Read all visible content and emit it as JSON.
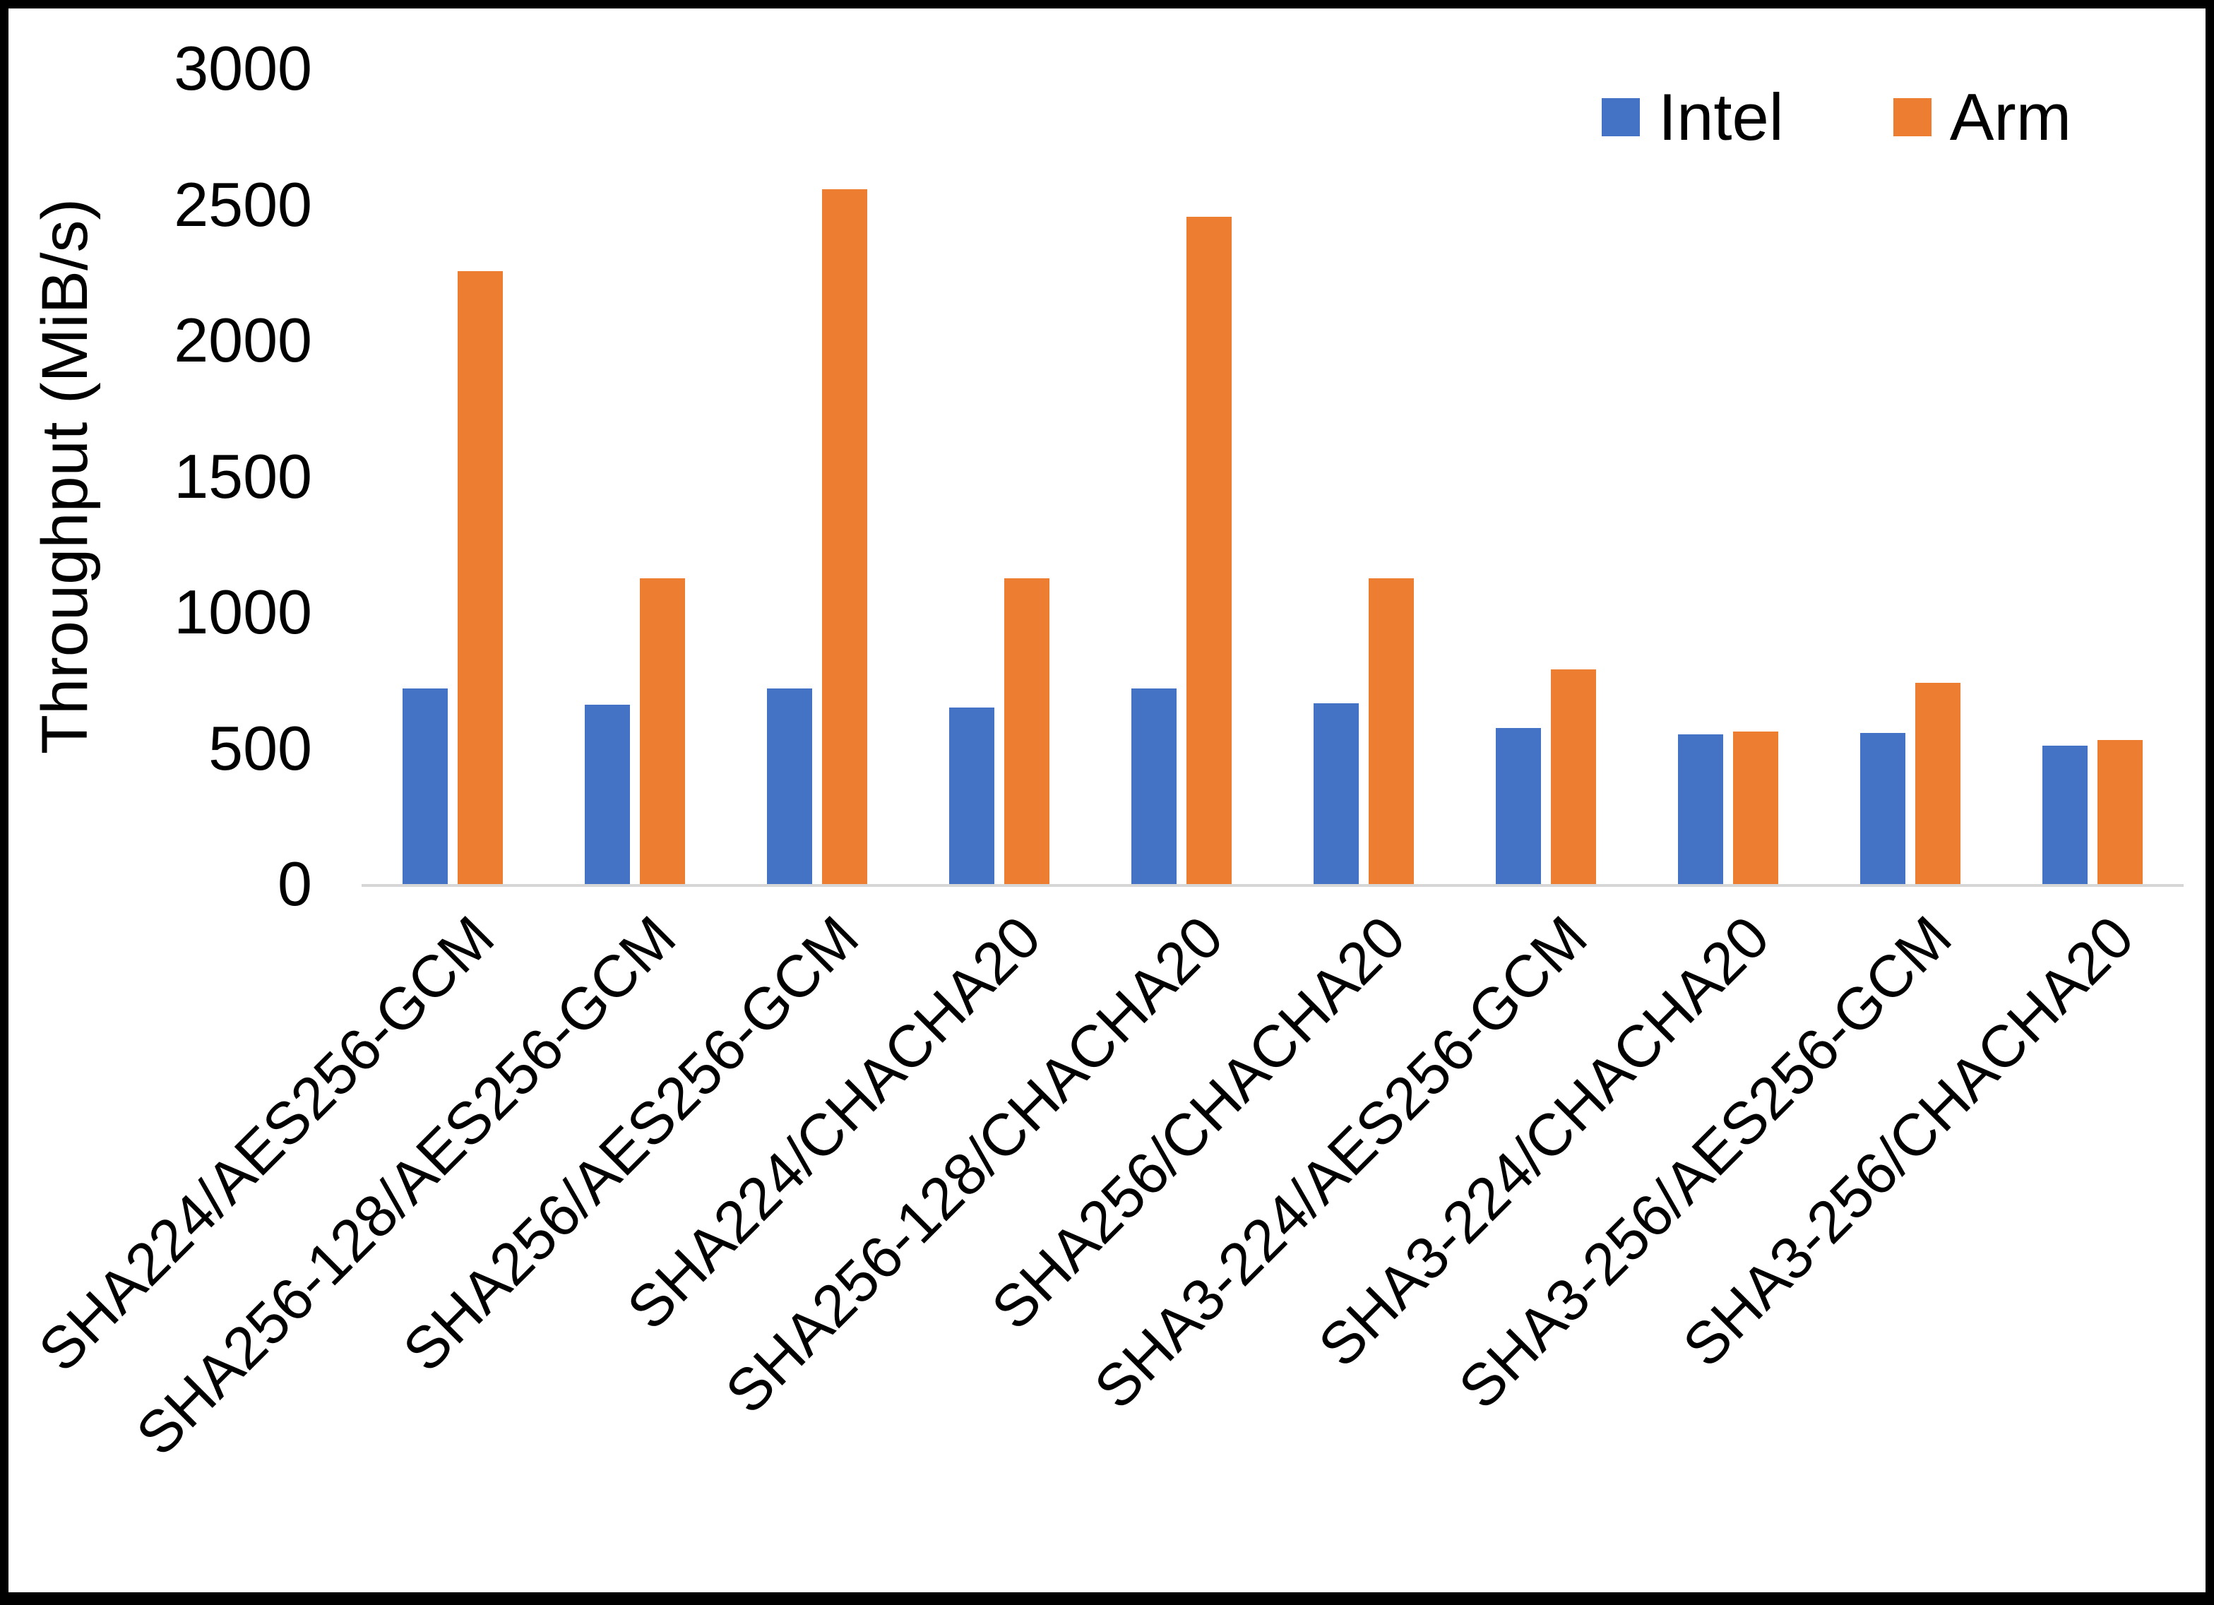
{
  "chart_data": {
    "type": "bar",
    "title": "",
    "xlabel": "",
    "ylabel": "Throughput (MiB/s)",
    "ylim": [
      0,
      3000
    ],
    "yticks": [
      0,
      500,
      1000,
      1500,
      2000,
      2500,
      3000
    ],
    "grid": false,
    "legend_position": "top-right",
    "categories": [
      "SHA224/AES256-GCM",
      "SHA256-128/AES256-GCM",
      "SHA256/AES256-GCM",
      "SHA224/CHACHA20",
      "SHA256-128/CHACHA20",
      "SHA256/CHACHA20",
      "SHA3-224/AES256-GCM",
      "SHA3-224/CHACHA20",
      "SHA3-256/AES256-GCM",
      "SHA3-256/CHACHA20"
    ],
    "series": [
      {
        "name": "Intel",
        "color": "#4472C4",
        "values": [
          720,
          660,
          720,
          650,
          720,
          665,
          575,
          550,
          555,
          510
        ]
      },
      {
        "name": "Arm",
        "color": "#ED7D31",
        "values": [
          2255,
          1125,
          2555,
          1125,
          2455,
          1125,
          790,
          560,
          740,
          530
        ]
      }
    ]
  }
}
